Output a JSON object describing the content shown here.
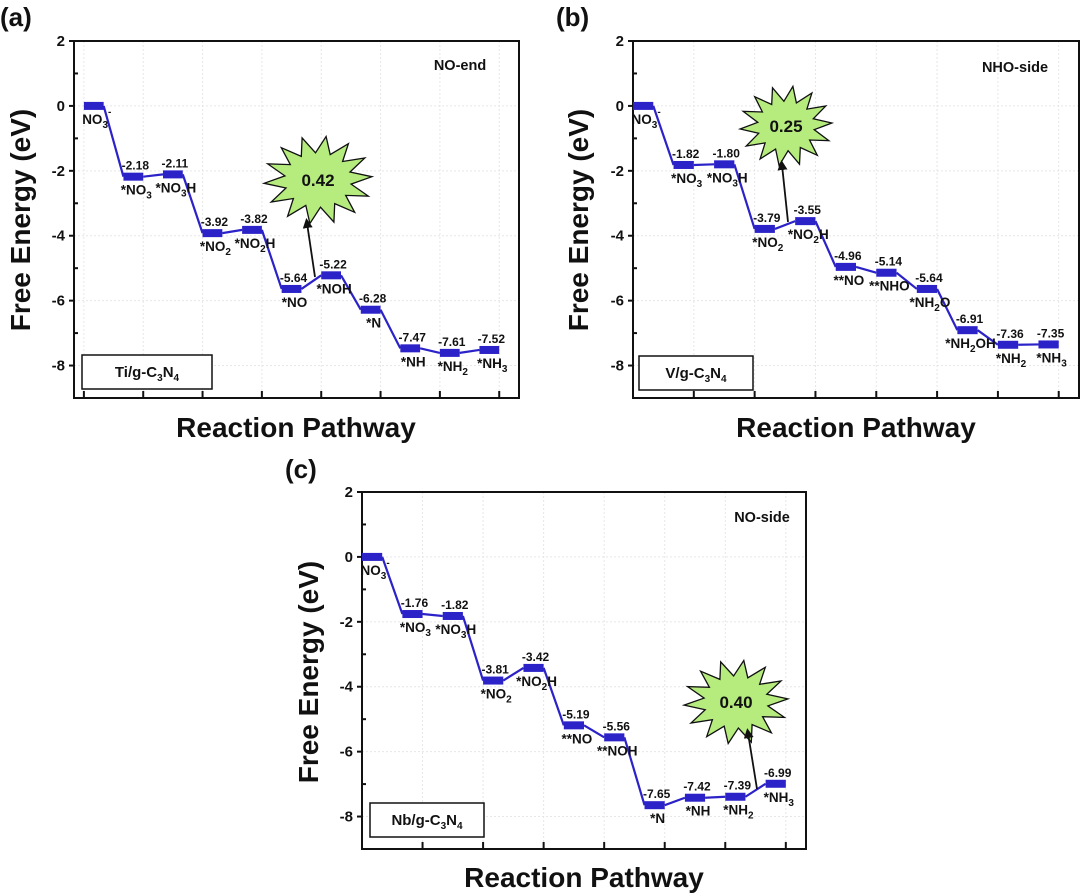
{
  "chart_data": [
    {
      "type": "line",
      "panel": "(a)",
      "title": "",
      "xlabel": "Reaction Pathway",
      "ylabel": "Free Energy (eV)",
      "ylim": [
        -9,
        2
      ],
      "yticks": [
        2,
        0,
        -2,
        -4,
        -6,
        -8
      ],
      "grid": true,
      "mechanism": "NO-end",
      "catalyst": {
        "pre": "Ti/g-C",
        "s1": "3",
        "mid": "N",
        "s2": "4"
      },
      "states": [
        {
          "label": {
            "t": "NO",
            "sub": "3",
            "sup": "-"
          },
          "value": 0.0,
          "show_value": false
        },
        {
          "label": {
            "t": "*NO",
            "sub": "3"
          },
          "value": -2.18
        },
        {
          "label": {
            "t": "*NO",
            "sub": "3",
            "t2": "H"
          },
          "value": -2.11
        },
        {
          "label": {
            "t": "*NO",
            "sub": "2"
          },
          "value": -3.92
        },
        {
          "label": {
            "t": "*NO",
            "sub": "2",
            "t2": "H"
          },
          "value": -3.82
        },
        {
          "label": {
            "t": "*NO"
          },
          "value": -5.64
        },
        {
          "label": {
            "t": "*NOH"
          },
          "value": -5.22
        },
        {
          "label": {
            "t": "*N"
          },
          "value": -6.28
        },
        {
          "label": {
            "t": "*NH"
          },
          "value": -7.47
        },
        {
          "label": {
            "t": "*NH",
            "sub": "2"
          },
          "value": -7.61
        },
        {
          "label": {
            "t": "*NH",
            "sub": "3"
          },
          "value": -7.52
        }
      ],
      "limiting_step": {
        "from_index": 5,
        "to_index": 6,
        "value": "0.42"
      },
      "series_color": "#2b22c8",
      "burst_color": "#b6ec7e"
    },
    {
      "type": "line",
      "panel": "(b)",
      "title": "",
      "xlabel": "Reaction Pathway",
      "ylabel": "Free Energy (eV)",
      "ylim": [
        -9,
        2
      ],
      "yticks": [
        2,
        0,
        -2,
        -4,
        -6,
        -8
      ],
      "grid": true,
      "mechanism": "NHO-side",
      "catalyst": {
        "pre": "V/g-C",
        "s1": "3",
        "mid": "N",
        "s2": "4"
      },
      "states": [
        {
          "label": {
            "t": "NO",
            "sub": "3",
            "sup": "-"
          },
          "value": 0.0,
          "show_value": false
        },
        {
          "label": {
            "t": "*NO",
            "sub": "3"
          },
          "value": -1.82
        },
        {
          "label": {
            "t": "*NO",
            "sub": "3",
            "t2": "H"
          },
          "value": -1.8
        },
        {
          "label": {
            "t": "*NO",
            "sub": "2"
          },
          "value": -3.79
        },
        {
          "label": {
            "t": "*NO",
            "sub": "2",
            "t2": "H"
          },
          "value": -3.55
        },
        {
          "label": {
            "t": "**NO"
          },
          "value": -4.96
        },
        {
          "label": {
            "t": "**NHO"
          },
          "value": -5.14
        },
        {
          "label": {
            "t": "*NH",
            "sub": "2",
            "t2": "O"
          },
          "value": -5.64
        },
        {
          "label": {
            "t": "*NH",
            "sub": "2",
            "t2": "OH"
          },
          "value": -6.91
        },
        {
          "label": {
            "t": "*NH",
            "sub": "2"
          },
          "value": -7.36
        },
        {
          "label": {
            "t": "*NH",
            "sub": "3"
          },
          "value": -7.35
        }
      ],
      "limiting_step": {
        "from_index": 3,
        "to_index": 4,
        "value": "0.25"
      },
      "series_color": "#2b22c8",
      "burst_color": "#b6ec7e"
    },
    {
      "type": "line",
      "panel": "(c)",
      "title": "",
      "xlabel": "Reaction Pathway",
      "ylabel": "Free Energy (eV)",
      "ylim": [
        -9,
        2
      ],
      "yticks": [
        2,
        0,
        -2,
        -4,
        -6,
        -8
      ],
      "grid": true,
      "mechanism": "NO-side",
      "catalyst": {
        "pre": "Nb/g-C",
        "s1": "3",
        "mid": "N",
        "s2": "4"
      },
      "states": [
        {
          "label": {
            "t": "NO",
            "sub": "3",
            "sup": "-"
          },
          "value": 0.0,
          "show_value": false
        },
        {
          "label": {
            "t": "*NO",
            "sub": "3"
          },
          "value": -1.76
        },
        {
          "label": {
            "t": "*NO",
            "sub": "3",
            "t2": "H"
          },
          "value": -1.82
        },
        {
          "label": {
            "t": "*NO",
            "sub": "2"
          },
          "value": -3.81
        },
        {
          "label": {
            "t": "*NO",
            "sub": "2",
            "t2": "H"
          },
          "value": -3.42
        },
        {
          "label": {
            "t": "**NO"
          },
          "value": -5.19
        },
        {
          "label": {
            "t": "**NOH"
          },
          "value": -5.56
        },
        {
          "label": {
            "t": "*N"
          },
          "value": -7.65
        },
        {
          "label": {
            "t": "*NH"
          },
          "value": -7.42
        },
        {
          "label": {
            "t": "*NH",
            "sub": "2"
          },
          "value": -7.39
        },
        {
          "label": {
            "t": "*NH",
            "sub": "3"
          },
          "value": -6.99
        }
      ],
      "limiting_step": {
        "from_index": 9,
        "to_index": 10,
        "value": "0.40"
      },
      "series_color": "#2b22c8",
      "burst_color": "#b6ec7e"
    }
  ]
}
